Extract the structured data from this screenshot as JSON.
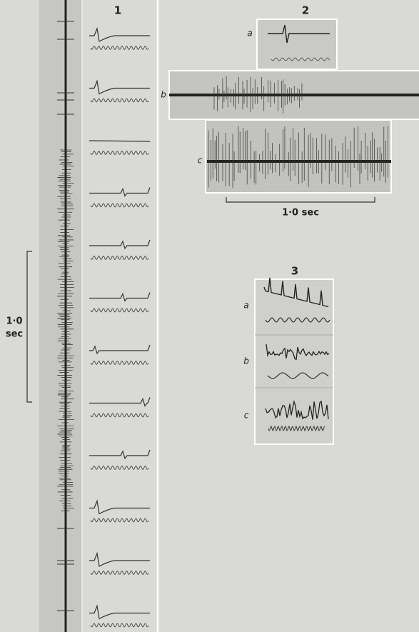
{
  "panels": [
    {
      "label": "1",
      "scale": {
        "lines": [
          "1·0",
          "sec"
        ]
      }
    },
    {
      "label": "2",
      "traces": [
        "a",
        "b",
        "c"
      ],
      "scale": "1·0 sec"
    },
    {
      "label": "3",
      "traces": [
        "a",
        "b",
        "c"
      ]
    }
  ]
}
